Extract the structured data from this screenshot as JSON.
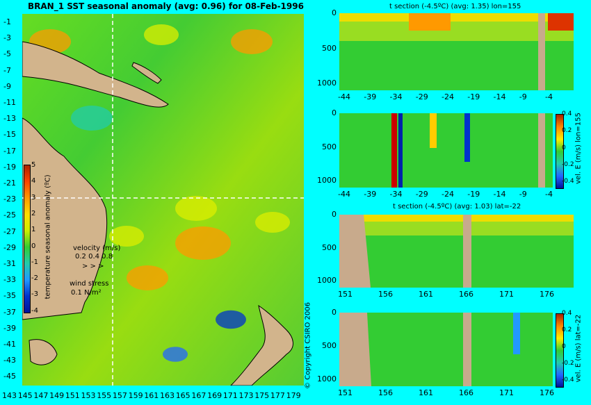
{
  "map": {
    "title": "BRAN_1 SST seasonal anomaly (avg: 0.96) for 08-Feb-1996",
    "lat_ticks": [
      "-1",
      "-3",
      "-5",
      "-7",
      "-9",
      "-11",
      "-13",
      "-15",
      "-17",
      "-19",
      "-21",
      "-23",
      "-25",
      "-27",
      "-29",
      "-31",
      "-33",
      "-35",
      "-37",
      "-39",
      "-41",
      "-43",
      "-45"
    ],
    "lon_ticks": [
      "143",
      "145",
      "147",
      "149",
      "151",
      "153",
      "155",
      "157",
      "159",
      "161",
      "163",
      "165",
      "167",
      "169",
      "171",
      "173",
      "175",
      "177",
      "179"
    ],
    "colorbar_label": "temperature seasonal anomaly (ºC)",
    "colorbar_ticks": [
      "5",
      "4",
      "3",
      "2",
      "1",
      "0",
      "-1",
      "-2",
      "-3",
      "-4"
    ],
    "velocity_label": "velocity (m/s)",
    "velocity_scale": "0.2 0.4 0.8",
    "wind_label": "wind stress",
    "wind_scale": "0.1 N/m²",
    "copyright": "© Copyright CSIRO 2006"
  },
  "sections": [
    {
      "title": "t section (-4.5ºC) (avg: 1.35) lon=155",
      "y_ticks": [
        "0",
        "500",
        "1000"
      ],
      "x_ticks": [
        "-44",
        "-39",
        "-34",
        "-29",
        "-24",
        "-19",
        "-14",
        "-9",
        "-4"
      ],
      "colorbar_label": ""
    },
    {
      "title": "",
      "y_ticks": [
        "0",
        "500",
        "1000"
      ],
      "x_ticks": [
        "-44",
        "-39",
        "-34",
        "-29",
        "-24",
        "-19",
        "-14",
        "-9",
        "-4"
      ],
      "colorbar_label": "vel. E (m/s) lon=155",
      "colorbar_ticks": [
        "0.4",
        "0.2",
        "0",
        "-0.2",
        "-0.4"
      ]
    },
    {
      "title": "t section (-4.5ºC) (avg: 1.03) lat=-22",
      "y_ticks": [
        "0",
        "500",
        "1000"
      ],
      "x_ticks": [
        "151",
        "156",
        "161",
        "166",
        "171",
        "176"
      ],
      "colorbar_label": ""
    },
    {
      "title": "",
      "y_ticks": [
        "0",
        "500",
        "1000"
      ],
      "x_ticks": [
        "151",
        "156",
        "161",
        "166",
        "171",
        "176"
      ],
      "colorbar_label": "vel. E (m/s) lat=-22",
      "colorbar_ticks": [
        "0.4",
        "0.2",
        "0",
        "-0.2",
        "-0.4"
      ]
    }
  ],
  "chart_data": [
    {
      "type": "heatmap",
      "title": "BRAN_1 SST seasonal anomaly (avg: 0.96) for 08-Feb-1996",
      "xlabel": "",
      "ylabel": "",
      "xlim": [
        143,
        180
      ],
      "ylim": [
        -45,
        0
      ],
      "colorbar": {
        "label": "temperature seasonal anomaly (ºC)",
        "range": [
          -4,
          5
        ]
      }
    },
    {
      "type": "heatmap",
      "title": "t section (-4.5ºC) (avg: 1.35) lon=155",
      "xlim": [
        -45,
        0
      ],
      "ylim": [
        1050,
        0
      ]
    },
    {
      "type": "heatmap",
      "title": "",
      "xlim": [
        -45,
        0
      ],
      "ylim": [
        1050,
        0
      ],
      "colorbar": {
        "label": "vel. E (m/s) lon=155",
        "range": [
          -0.4,
          0.4
        ]
      }
    },
    {
      "type": "heatmap",
      "title": "t section (-4.5ºC) (avg: 1.03) lat=-22",
      "xlim": [
        150,
        180
      ],
      "ylim": [
        1050,
        0
      ]
    },
    {
      "type": "heatmap",
      "title": "",
      "xlim": [
        150,
        180
      ],
      "ylim": [
        1050,
        0
      ],
      "colorbar": {
        "label": "vel. E (m/s) lat=-22",
        "range": [
          -0.4,
          0.4
        ]
      }
    }
  ],
  "colors": {
    "background": "#00ffff",
    "land": "#d2b48c",
    "section_land": "#c8aa8c",
    "green": "#33cc33",
    "yellow": "#ddee00",
    "orange": "#ff9900",
    "blue": "#0033cc"
  }
}
